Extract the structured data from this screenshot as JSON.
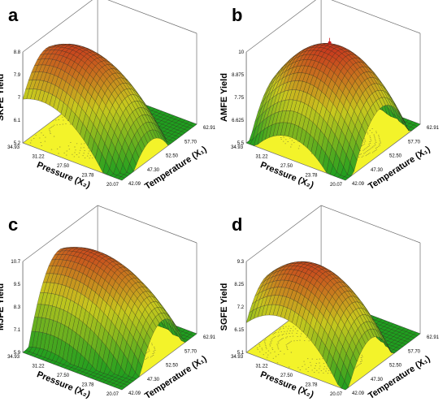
{
  "figure": {
    "colors": {
      "floor": "#f3f32a",
      "surface_low": "#1f9e1f",
      "surface_mid": "#c8c81e",
      "surface_high": "#c8321e",
      "contour": "#8a8a35",
      "box": "#6e6e6e",
      "mesh": "#222222"
    }
  },
  "chart_data": [
    {
      "panel": "a",
      "type": "surface",
      "zlabel": "SKFE Yield",
      "xlabel": "Temperature (X₁)",
      "ylabel": "Pressure (X₂)",
      "x_ticks": [
        "42.09",
        "47.30",
        "52.50",
        "57.70",
        "62.91"
      ],
      "y_ticks": [
        "20.07",
        "23.78",
        "27.50",
        "31.22",
        "34.93"
      ],
      "z_ticks": [
        "5.2",
        "6.1",
        "7",
        "7.9",
        "8.8"
      ],
      "xlim": [
        42.09,
        62.91
      ],
      "ylim": [
        20.07,
        34.93
      ],
      "zlim": [
        5.2,
        8.8
      ],
      "surface": {
        "center_x": 49.0,
        "center_y": 31.0,
        "peak": 8.6,
        "curv_x": 3.8,
        "curv_y": 1.4,
        "cross": 0.6
      },
      "peak_marker": false
    },
    {
      "panel": "b",
      "type": "surface",
      "zlabel": "AMFE Yield",
      "xlabel": "Temperature (X₁)",
      "ylabel": "Pressure (X₂)",
      "x_ticks": [
        "42.09",
        "47.30",
        "52.50",
        "57.70",
        "62.91"
      ],
      "y_ticks": [
        "20.07",
        "23.78",
        "27.50",
        "31.22",
        "34.93"
      ],
      "z_ticks": [
        "5.5",
        "6.625",
        "7.75",
        "8.875",
        "10"
      ],
      "xlim": [
        42.09,
        62.91
      ],
      "ylim": [
        20.07,
        34.93
      ],
      "zlim": [
        5.5,
        10
      ],
      "surface": {
        "center_x": 51.5,
        "center_y": 27.5,
        "peak": 9.9,
        "curv_x": 3.6,
        "curv_y": 1.9,
        "cross": 0.4
      },
      "peak_marker": true
    },
    {
      "panel": "c",
      "type": "surface",
      "zlabel": "MJFE Yield",
      "xlabel": "Temperature (X₁)",
      "ylabel": "Pressure (X₂)",
      "x_ticks": [
        "42.09",
        "47.30",
        "52.50",
        "57.70",
        "62.91"
      ],
      "y_ticks": [
        "20.07",
        "23.78",
        "27.50",
        "31.22",
        "34.93"
      ],
      "z_ticks": [
        "5.9",
        "7.1",
        "8.3",
        "9.5",
        "10.7"
      ],
      "xlim": [
        42.09,
        62.91
      ],
      "ylim": [
        20.07,
        34.93
      ],
      "zlim": [
        5.9,
        10.7
      ],
      "surface": {
        "center_x": 52.5,
        "center_y": 30.5,
        "peak": 10.3,
        "curv_x": 4.9,
        "curv_y": 1.0,
        "cross": 0.5
      },
      "peak_marker": false
    },
    {
      "panel": "d",
      "type": "surface",
      "zlabel": "SGFE Yield",
      "xlabel": "Temperature (X₁)",
      "ylabel": "Pressure (X₂)",
      "x_ticks": [
        "42.09",
        "47.30",
        "52.50",
        "57.70",
        "62.91"
      ],
      "y_ticks": [
        "20.07",
        "23.78",
        "27.50",
        "31.22",
        "34.93"
      ],
      "z_ticks": [
        "5.1",
        "6.15",
        "7.2",
        "8.25",
        "9.3"
      ],
      "xlim": [
        42.09,
        62.91
      ],
      "ylim": [
        20.07,
        34.93
      ],
      "zlim": [
        5.1,
        9.3
      ],
      "surface": {
        "center_x": 48.5,
        "center_y": 29.0,
        "peak": 9.0,
        "curv_x": 4.2,
        "curv_y": 1.6,
        "cross": 0.4
      },
      "peak_marker": false
    }
  ]
}
